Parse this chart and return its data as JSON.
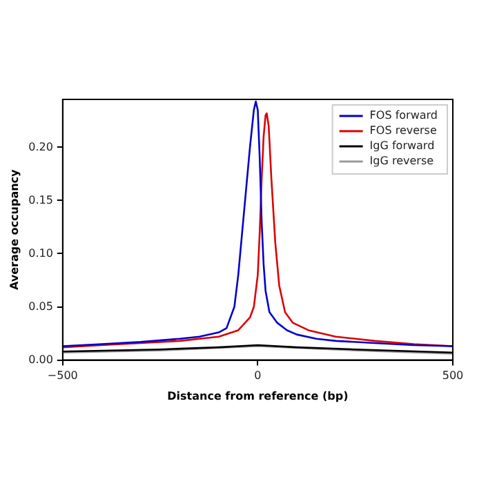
{
  "chart_data": {
    "type": "line",
    "xlabel": "Distance from reference (bp)",
    "ylabel": "Average occupancy",
    "legend": "top right",
    "grid": false,
    "marker": "none",
    "line_style": "solid",
    "xlim": [
      -500,
      500
    ],
    "xticks": [
      {
        "value": -500,
        "label": "−500"
      },
      0,
      500
    ],
    "ylim": [
      0,
      0.245
    ],
    "yticks": [
      {
        "value": 0,
        "label": "0.00"
      },
      {
        "value": 0.05,
        "label": "0.05"
      },
      {
        "value": 0.1,
        "label": "0.10"
      },
      {
        "value": 0.15,
        "label": "0.15"
      },
      {
        "value": 0.2,
        "label": "0.20"
      }
    ],
    "series": [
      {
        "name": "FOS forward",
        "color": "#0000cc",
        "x": [
          -500,
          -400,
          -300,
          -200,
          -150,
          -100,
          -80,
          -60,
          -50,
          -40,
          -30,
          -20,
          -10,
          -5,
          0,
          5,
          10,
          15,
          20,
          30,
          50,
          75,
          100,
          150,
          200,
          300,
          400,
          500
        ],
        "values": [
          0.013,
          0.015,
          0.017,
          0.02,
          0.022,
          0.026,
          0.03,
          0.05,
          0.08,
          0.12,
          0.16,
          0.2,
          0.235,
          0.243,
          0.235,
          0.19,
          0.13,
          0.09,
          0.065,
          0.045,
          0.035,
          0.028,
          0.024,
          0.02,
          0.018,
          0.016,
          0.014,
          0.013
        ]
      },
      {
        "name": "FOS reverse",
        "color": "#dd0000",
        "x": [
          -500,
          -400,
          -300,
          -200,
          -100,
          -50,
          -20,
          -10,
          0,
          5,
          10,
          15,
          20,
          23,
          28,
          35,
          45,
          55,
          70,
          90,
          130,
          200,
          300,
          400,
          500
        ],
        "values": [
          0.012,
          0.014,
          0.016,
          0.018,
          0.022,
          0.028,
          0.04,
          0.05,
          0.08,
          0.12,
          0.17,
          0.21,
          0.23,
          0.232,
          0.22,
          0.17,
          0.11,
          0.07,
          0.045,
          0.035,
          0.028,
          0.022,
          0.018,
          0.015,
          0.013
        ]
      },
      {
        "name": "IgG forward",
        "color": "#000000",
        "x": [
          -500,
          -250,
          -100,
          0,
          100,
          250,
          500
        ],
        "values": [
          0.008,
          0.01,
          0.012,
          0.014,
          0.012,
          0.01,
          0.007
        ]
      },
      {
        "name": "IgG reverse",
        "color": "#999999",
        "x": [
          -500,
          -250,
          0,
          250,
          500
        ],
        "values": [
          0.007,
          0.009,
          0.013,
          0.009,
          0.006
        ]
      }
    ]
  }
}
